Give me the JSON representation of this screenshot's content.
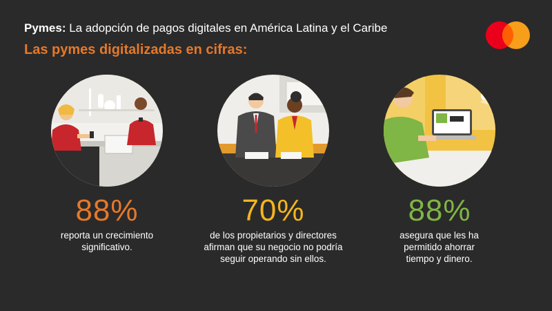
{
  "header": {
    "title_bold": "Pymes:",
    "title_rest": "La adopción de pagos digitales en América Latina y el Caribe",
    "subtitle": "Las pymes digitalizadas en cifras:"
  },
  "colors": {
    "background": "#2b2a2a",
    "accent_orange": "#e5792a",
    "accent_yellow": "#f3b51e",
    "accent_green": "#7fb645",
    "logo_red": "#eb001b",
    "logo_orange": "#f79e1b"
  },
  "logo": {
    "icon": "mastercard-logo-icon"
  },
  "stats": [
    {
      "value": "88%",
      "text": "reporta un crecimiento significativo.",
      "illustration": "shop-counter-illustration-icon"
    },
    {
      "value": "70%",
      "text": "de los propietarios y directores afirman que su negocio no podría seguir operando sin ellos.",
      "illustration": "business-owners-illustration-icon"
    },
    {
      "value": "88%",
      "text": "asegura que les ha permitido ahorrar tiempo y dinero.",
      "illustration": "laptop-user-illustration-icon"
    }
  ]
}
